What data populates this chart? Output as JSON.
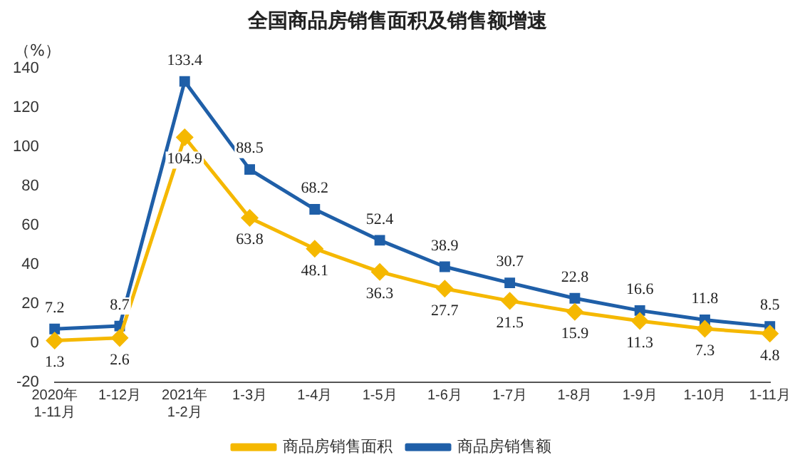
{
  "chart_data": {
    "type": "line",
    "title": "全国商品房销售面积及销售额增速",
    "ylabel": "（%）",
    "categories": [
      "2020年\n1-11月",
      "1-12月",
      "2021年\n1-2月",
      "1-3月",
      "1-4月",
      "1-5月",
      "1-6月",
      "1-7月",
      "1-8月",
      "1-9月",
      "1-10月",
      "1-11月"
    ],
    "series": [
      {
        "name": "商品房销售面积",
        "color": "#f5b800",
        "marker": "diamond",
        "values": [
          1.3,
          2.6,
          104.9,
          63.8,
          48.1,
          36.3,
          27.7,
          21.5,
          15.9,
          11.3,
          7.3,
          4.8
        ]
      },
      {
        "name": "商品房销售额",
        "color": "#1f5fa8",
        "marker": "square",
        "values": [
          7.2,
          8.7,
          133.4,
          88.5,
          68.2,
          52.4,
          38.9,
          30.7,
          22.8,
          16.6,
          11.8,
          8.5
        ]
      }
    ],
    "ylim": [
      -20,
      140
    ],
    "yticks": [
      -20,
      0,
      20,
      40,
      60,
      80,
      100,
      120,
      140
    ],
    "grid": false,
    "legend": "bottom",
    "data_labels": true,
    "line_style": "solid"
  }
}
